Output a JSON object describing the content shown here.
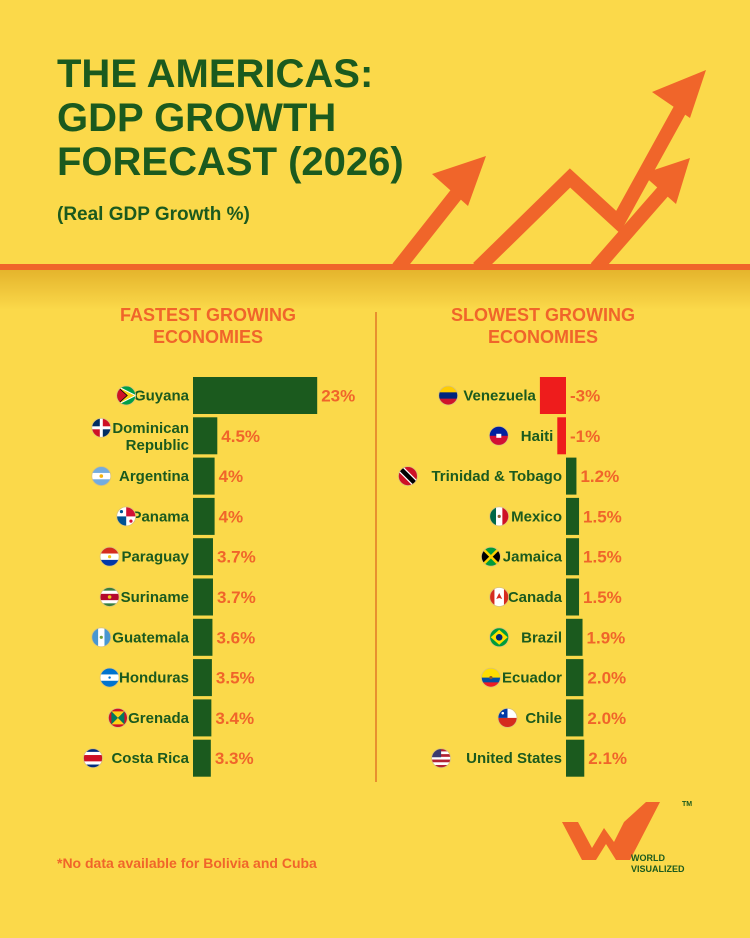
{
  "header": {
    "title_lines": [
      "THE AMERICAS:",
      "GDP GROWTH",
      "FORECAST (2026)"
    ],
    "subtitle": "(Real GDP Growth %)"
  },
  "colors": {
    "background": "#fbd94a",
    "dark_green": "#1b5a1e",
    "orange": "#f0652a",
    "negative_red": "#ee1c1c"
  },
  "chart_data": [
    {
      "type": "bar",
      "orientation": "horizontal",
      "title_lines": [
        "FASTEST GROWING",
        "ECONOMIES"
      ],
      "categories": [
        [
          "Guyana"
        ],
        [
          "Dominican",
          "Republic"
        ],
        [
          "Argentina"
        ],
        [
          "Panama"
        ],
        [
          "Paraguay"
        ],
        [
          "Suriname"
        ],
        [
          "Guatemala"
        ],
        [
          "Honduras"
        ],
        [
          "Grenada"
        ],
        [
          "Costa Rica"
        ]
      ],
      "values": [
        23,
        4.5,
        4,
        4,
        3.7,
        3.7,
        3.6,
        3.5,
        3.4,
        3.3
      ],
      "labels": [
        "23%",
        "4.5%",
        "4%",
        "4%",
        "3.7%",
        "3.7%",
        "3.6%",
        "3.5%",
        "3.4%",
        "3.3%"
      ],
      "flags": [
        "guyana-flag",
        "dominican-republic-flag",
        "argentina-flag",
        "panama-flag",
        "paraguay-flag",
        "suriname-flag",
        "guatemala-flag",
        "honduras-flag",
        "grenada-flag",
        "costa-rica-flag"
      ],
      "bar_color": "#1b5a1e"
    },
    {
      "type": "bar",
      "orientation": "horizontal",
      "title_lines": [
        "SLOWEST GROWING",
        "ECONOMIES"
      ],
      "categories": [
        [
          "Venezuela"
        ],
        [
          "Haiti"
        ],
        [
          "Trinidad & Tobago"
        ],
        [
          "Mexico"
        ],
        [
          "Jamaica"
        ],
        [
          "Canada"
        ],
        [
          "Brazil"
        ],
        [
          "Ecuador"
        ],
        [
          "Chile"
        ],
        [
          "United States"
        ]
      ],
      "values": [
        -3,
        -1,
        1.2,
        1.5,
        1.5,
        1.5,
        1.9,
        2.0,
        2.0,
        2.1
      ],
      "labels": [
        "-3%",
        "-1%",
        "1.2%",
        "1.5%",
        "1.5%",
        "1.5%",
        "1.9%",
        "2.0%",
        "2.0%",
        "2.1%"
      ],
      "flags": [
        "venezuela-flag",
        "haiti-flag",
        "trinidad-and-tobago-flag",
        "mexico-flag",
        "jamaica-flag",
        "canada-flag",
        "brazil-flag",
        "ecuador-flag",
        "chile-flag",
        "united-states-flag"
      ],
      "positive_color": "#1b5a1e",
      "negative_color": "#ee1c1c"
    }
  ],
  "footnote": "*No data available for Bolivia and Cuba",
  "logo": {
    "line1": "WORLD",
    "line2": "VISUALIZED",
    "trademark": "TM",
    "icon": "world-visualized-logo"
  }
}
